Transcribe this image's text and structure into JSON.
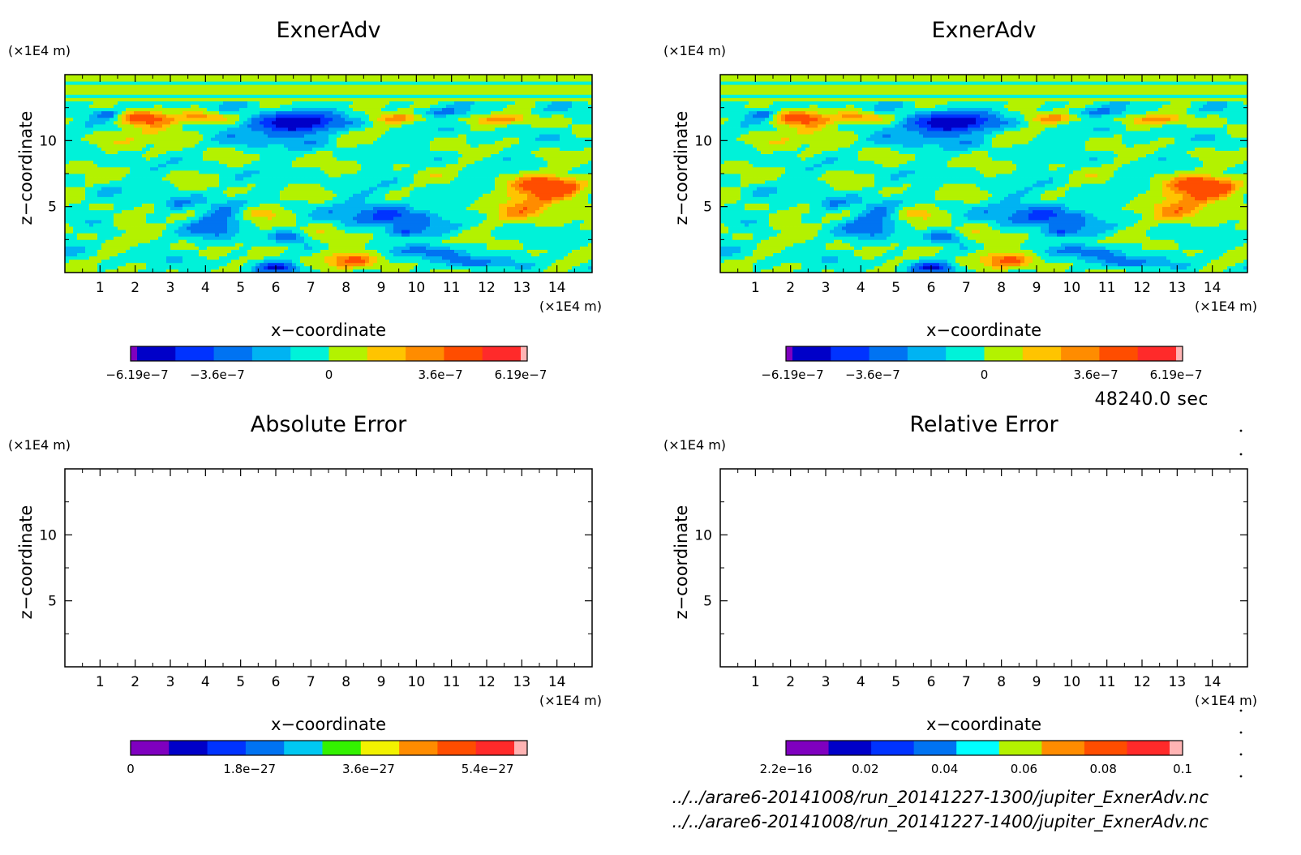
{
  "timestamp": "48240.0 sec",
  "file_paths": [
    "../../arare6-20141008/run_20141227-1300/jupiter_ExnerAdv.nc",
    "../../arare6-20141008/run_20141227-1400/jupiter_ExnerAdv.nc"
  ],
  "colors": {
    "levels": [
      "#7f00bf",
      "#0000c8",
      "#0033ff",
      "#0073f2",
      "#00b3f2",
      "#00f2d9",
      "#b3f200",
      "#ffc400",
      "#ff8c00",
      "#ff4d00",
      "#ff2a2a",
      "#ffb3b3"
    ],
    "abs_levels": [
      "#7f00bf",
      "#0000c8",
      "#0033ff",
      "#0073f2",
      "#00c8f2",
      "#33f200",
      "#f2f200",
      "#ff8c00",
      "#ff4d00",
      "#ff2a2a",
      "#ffb3b3"
    ],
    "rel_levels": [
      "#7f00bf",
      "#0000c8",
      "#0033ff",
      "#0073f2",
      "#00ffff",
      "#b3f200",
      "#ff8c00",
      "#ff4d00",
      "#ff2a2a",
      "#ffb3b3"
    ]
  },
  "chart_data": [
    {
      "type": "heatmap",
      "panel": "top-left",
      "title": "ExnerAdv",
      "xlabel": "x−coordinate",
      "ylabel": "z−coordinate",
      "x_unit": "(×1E4 m)",
      "y_unit": "(×1E4 m)",
      "xlim": [
        0,
        15
      ],
      "ylim": [
        0,
        15
      ],
      "x_ticks": [
        "1",
        "2",
        "3",
        "4",
        "5",
        "6",
        "7",
        "8",
        "9",
        "10",
        "11",
        "12",
        "13",
        "14"
      ],
      "y_ticks": [
        "5",
        "10"
      ],
      "colorbar_range": [
        -6.19e-07,
        6.19e-07
      ],
      "colorbar_labels": [
        "−6.19e−7",
        "−3.6e−7",
        "0",
        "3.6e−7",
        "6.19e−7"
      ],
      "colorbar_label_values": [
        -6.19e-07,
        -3.6e-07,
        0,
        3.6e-07,
        6.19e-07
      ]
    },
    {
      "type": "heatmap",
      "panel": "top-right",
      "title": "ExnerAdv",
      "xlabel": "x−coordinate",
      "ylabel": "z−coordinate",
      "x_unit": "(×1E4 m)",
      "y_unit": "(×1E4 m)",
      "xlim": [
        0,
        15
      ],
      "ylim": [
        0,
        15
      ],
      "x_ticks": [
        "1",
        "2",
        "3",
        "4",
        "5",
        "6",
        "7",
        "8",
        "9",
        "10",
        "11",
        "12",
        "13",
        "14"
      ],
      "y_ticks": [
        "5",
        "10"
      ],
      "colorbar_range": [
        -6.19e-07,
        6.19e-07
      ],
      "colorbar_labels": [
        "−6.19e−7",
        "−3.6e−7",
        "0",
        "3.6e−7",
        "6.19e−7"
      ],
      "colorbar_label_values": [
        -6.19e-07,
        -3.6e-07,
        0,
        3.6e-07,
        6.19e-07
      ]
    },
    {
      "type": "heatmap",
      "panel": "bottom-left",
      "title": "Absolute Error",
      "xlabel": "x−coordinate",
      "ylabel": "z−coordinate",
      "x_unit": "(×1E4 m)",
      "y_unit": "(×1E4 m)",
      "xlim": [
        0,
        15
      ],
      "ylim": [
        0,
        15
      ],
      "x_ticks": [
        "1",
        "2",
        "3",
        "4",
        "5",
        "6",
        "7",
        "8",
        "9",
        "10",
        "11",
        "12",
        "13",
        "14"
      ],
      "y_ticks": [
        "5",
        "10"
      ],
      "colorbar_range": [
        0,
        6e-27
      ],
      "colorbar_labels": [
        "0",
        "1.8e−27",
        "3.6e−27",
        "5.4e−27"
      ],
      "colorbar_label_values": [
        0,
        1.8e-27,
        3.6e-27,
        5.4e-27
      ]
    },
    {
      "type": "heatmap",
      "panel": "bottom-right",
      "title": "Relative Error",
      "xlabel": "x−coordinate",
      "ylabel": "z−coordinate",
      "x_unit": "(×1E4 m)",
      "y_unit": "(×1E4 m)",
      "xlim": [
        0,
        15
      ],
      "ylim": [
        0,
        15
      ],
      "x_ticks": [
        "1",
        "2",
        "3",
        "4",
        "5",
        "6",
        "7",
        "8",
        "9",
        "10",
        "11",
        "12",
        "13",
        "14"
      ],
      "y_ticks": [
        "5",
        "10"
      ],
      "colorbar_range": [
        0,
        0.1
      ],
      "colorbar_labels": [
        "2.2e−16",
        "0.02",
        "0.04",
        "0.06",
        "0.08",
        "0.1"
      ],
      "colorbar_label_values": [
        0,
        0.02,
        0.04,
        0.06,
        0.08,
        0.1
      ]
    }
  ]
}
